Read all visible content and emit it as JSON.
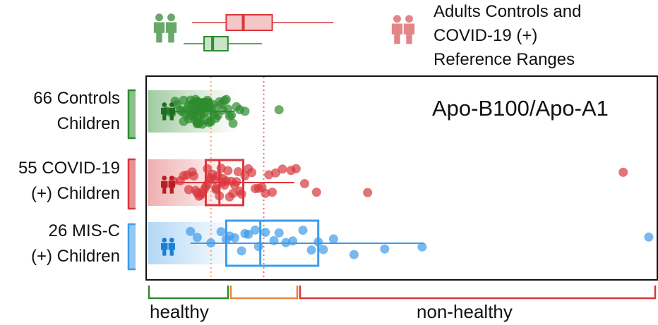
{
  "legend": {
    "line1": "Adults Controls and",
    "line2": "COVID-19 (+)",
    "line3": "Reference Ranges"
  },
  "groups": [
    {
      "line1": "66 Controls",
      "line2": "Children"
    },
    {
      "line1": "55 COVID-19",
      "line2": "(+) Children"
    },
    {
      "line1": "26 MIS-C",
      "line2": "(+) Children"
    }
  ],
  "zones": {
    "healthy": "healthy",
    "non_healthy": "non-healthy"
  },
  "colors": {
    "controls": "#2e8b2e",
    "covid": "#d9373c",
    "misc": "#3d9be9",
    "threshold1": "#f0a27a",
    "threshold2": "#e57373",
    "zone_mid": "#e8883a",
    "zone_bad": "#d9373c"
  },
  "chart_data": {
    "type": "box-strip",
    "title": "Apo-B100/Apo-A1",
    "xlim": [
      0,
      3.0
    ],
    "thresholds": [
      0.38,
      0.69
    ],
    "zones": [
      {
        "label": "healthy",
        "range": [
          0,
          0.38
        ]
      },
      {
        "label": "",
        "range": [
          0.38,
          0.69
        ]
      },
      {
        "label": "non-healthy",
        "range": [
          0.69,
          3.0
        ]
      }
    ],
    "reference_ranges": [
      {
        "name": "Adults COVID-19 (+)",
        "whisker": [
          0.27,
          1.1
        ],
        "q1": 0.47,
        "median": 0.57,
        "q3": 0.74
      },
      {
        "name": "Adults Controls",
        "whisker": [
          0.22,
          0.68
        ],
        "q1": 0.34,
        "median": 0.39,
        "q3": 0.48
      }
    ],
    "series": [
      {
        "name": "66 Controls Children",
        "whisker": [
          0.1,
          0.52
        ],
        "q1": 0.29,
        "median": 0.32,
        "q3": 0.38,
        "points": [
          0.12,
          0.15,
          0.17,
          0.18,
          0.2,
          0.21,
          0.22,
          0.22,
          0.23,
          0.24,
          0.25,
          0.25,
          0.26,
          0.26,
          0.27,
          0.27,
          0.28,
          0.28,
          0.28,
          0.29,
          0.29,
          0.29,
          0.3,
          0.3,
          0.3,
          0.31,
          0.31,
          0.31,
          0.32,
          0.32,
          0.32,
          0.32,
          0.33,
          0.33,
          0.33,
          0.34,
          0.34,
          0.34,
          0.35,
          0.35,
          0.35,
          0.36,
          0.36,
          0.37,
          0.37,
          0.38,
          0.38,
          0.39,
          0.4,
          0.4,
          0.41,
          0.42,
          0.43,
          0.44,
          0.45,
          0.46,
          0.47,
          0.48,
          0.49,
          0.5,
          0.51,
          0.53,
          0.55,
          0.58,
          0.78,
          0.29
        ]
      },
      {
        "name": "55 COVID-19 (+) Children",
        "whisker": [
          0.15,
          0.87
        ],
        "q1": 0.35,
        "median": 0.43,
        "q3": 0.57,
        "points": [
          0.16,
          0.2,
          0.22,
          0.24,
          0.25,
          0.27,
          0.28,
          0.29,
          0.3,
          0.31,
          0.32,
          0.33,
          0.34,
          0.35,
          0.36,
          0.36,
          0.37,
          0.38,
          0.39,
          0.4,
          0.41,
          0.41,
          0.42,
          0.43,
          0.44,
          0.45,
          0.46,
          0.47,
          0.48,
          0.49,
          0.5,
          0.51,
          0.52,
          0.53,
          0.54,
          0.55,
          0.56,
          0.58,
          0.6,
          0.62,
          0.64,
          0.66,
          0.68,
          0.7,
          0.72,
          0.74,
          0.76,
          0.8,
          0.85,
          0.88,
          0.93,
          1.0,
          1.3,
          2.8,
          0.45
        ]
      },
      {
        "name": "26 MIS-C (+) Children",
        "whisker": [
          0.26,
          1.63
        ],
        "q1": 0.47,
        "median": 0.67,
        "q3": 1.01,
        "points": [
          0.26,
          0.3,
          0.38,
          0.44,
          0.47,
          0.49,
          0.52,
          0.56,
          0.58,
          0.6,
          0.64,
          0.66,
          0.7,
          0.75,
          0.78,
          0.82,
          0.86,
          0.92,
          0.97,
          1.01,
          1.04,
          1.1,
          1.22,
          1.4,
          1.62,
          2.95
        ]
      }
    ]
  }
}
